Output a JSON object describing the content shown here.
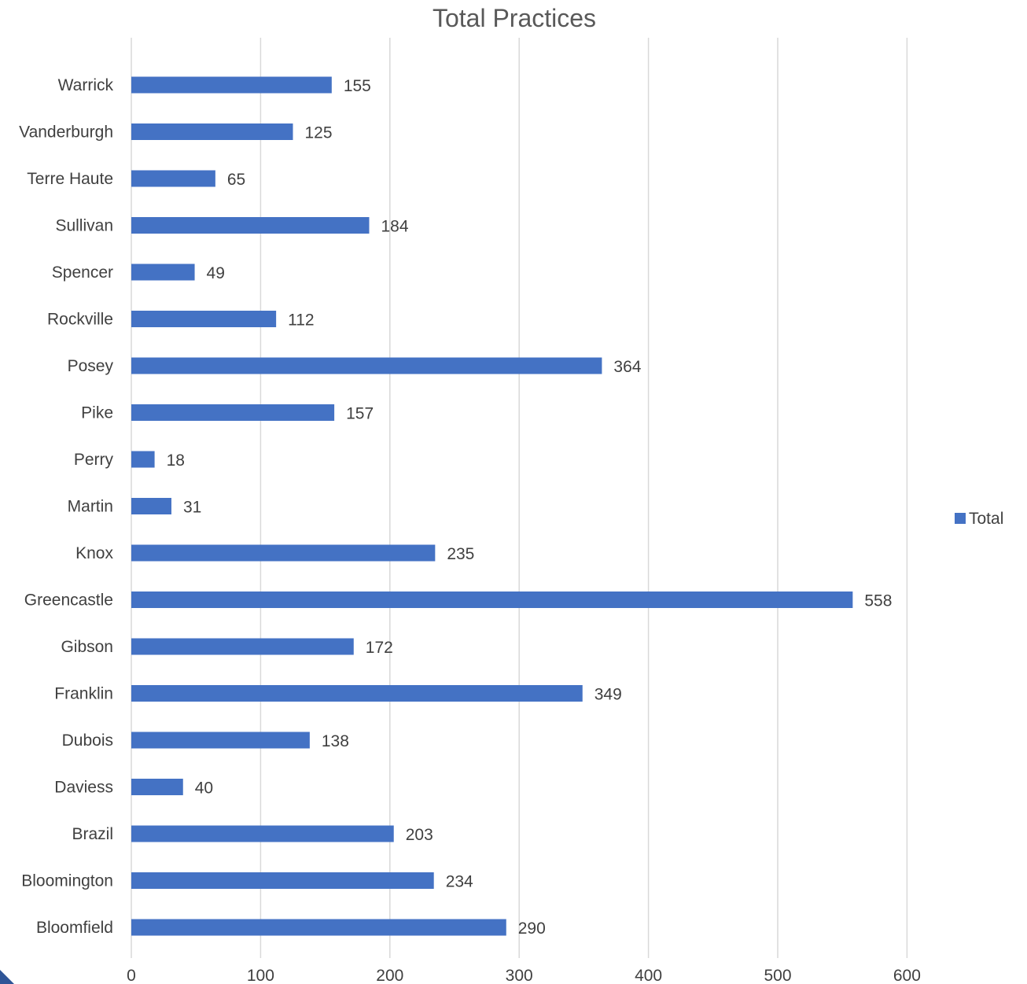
{
  "chart_data": {
    "type": "bar",
    "orientation": "horizontal",
    "title": "Total Practices",
    "xlabel": "",
    "ylabel": "",
    "categories": [
      "Bloomfield",
      "Bloomington",
      "Brazil",
      "Daviess",
      "Dubois",
      "Franklin",
      "Gibson",
      "Greencastle",
      "Knox",
      "Martin",
      "Perry",
      "Pike",
      "Posey",
      "Rockville",
      "Spencer",
      "Sullivan",
      "Terre Haute",
      "Vanderburgh",
      "Warrick"
    ],
    "series": [
      {
        "name": "Total",
        "color": "#4472c4",
        "values": [
          290,
          234,
          203,
          40,
          138,
          349,
          172,
          558,
          235,
          31,
          18,
          157,
          364,
          112,
          49,
          184,
          65,
          125,
          155
        ]
      }
    ],
    "xlim": [
      0,
      600
    ],
    "x_ticks": [
      "0",
      "100",
      "200",
      "300",
      "400",
      "500",
      "600"
    ],
    "grid": "vertical",
    "legend_position": "right",
    "data_labels": true
  }
}
